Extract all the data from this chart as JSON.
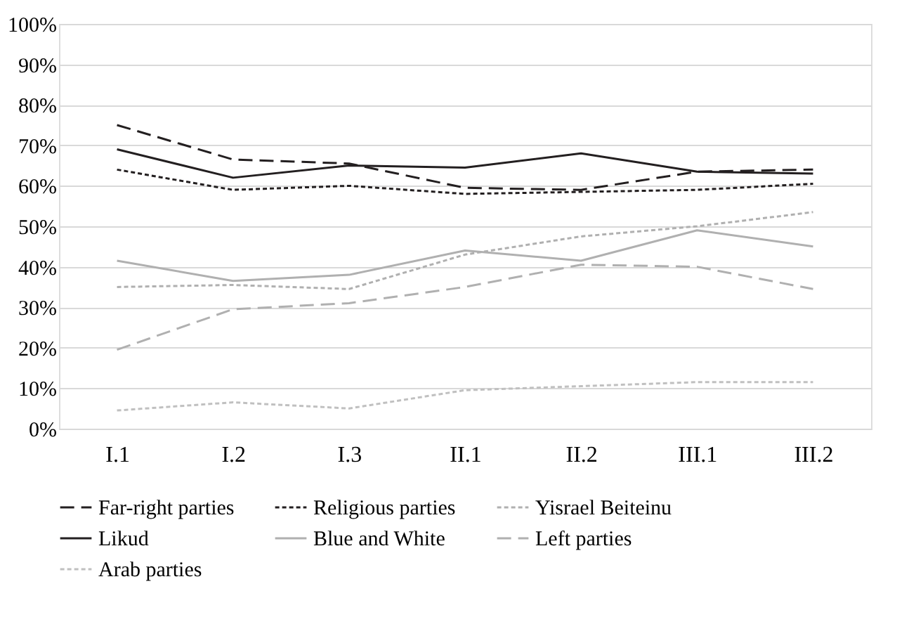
{
  "chart_data": {
    "type": "line",
    "categories": [
      "I.1",
      "I.2",
      "I.3",
      "II.1",
      "II.2",
      "III.1",
      "III.2"
    ],
    "ylim": [
      0,
      100
    ],
    "yticks": [
      {
        "value": 0,
        "label": "0%"
      },
      {
        "value": 10,
        "label": "10%"
      },
      {
        "value": 20,
        "label": "20%"
      },
      {
        "value": 30,
        "label": "30%"
      },
      {
        "value": 40,
        "label": "40%"
      },
      {
        "value": 50,
        "label": "50%"
      },
      {
        "value": 60,
        "label": "60%"
      },
      {
        "value": 70,
        "label": "70%"
      },
      {
        "value": 80,
        "label": "80%"
      },
      {
        "value": 90,
        "label": "90%"
      },
      {
        "value": 100,
        "label": "100%"
      }
    ],
    "grid": "y",
    "legend": "bottom",
    "marker": "none",
    "series": [
      {
        "name": "Far-right parties",
        "color": "#231f20",
        "line_style": "dashed",
        "values": [
          75,
          66.5,
          65.5,
          59.5,
          59,
          63.5,
          64
        ]
      },
      {
        "name": "Religious parties",
        "color": "#231f20",
        "line_style": "dotted",
        "values": [
          64,
          59,
          60,
          58,
          58.5,
          59,
          60.5
        ]
      },
      {
        "name": "Yisrael Beiteinu",
        "color": "#b0b0b0",
        "line_style": "dotted",
        "values": [
          35,
          35.5,
          34.5,
          43,
          47.5,
          50,
          53.5
        ]
      },
      {
        "name": "Likud",
        "color": "#231f20",
        "line_style": "solid",
        "values": [
          69,
          62,
          65,
          64.5,
          68,
          63.5,
          63
        ]
      },
      {
        "name": "Blue and White",
        "color": "#b0b0b0",
        "line_style": "solid",
        "values": [
          41.5,
          36.5,
          38,
          44,
          41.5,
          49,
          45
        ]
      },
      {
        "name": "Left parties",
        "color": "#b0b0b0",
        "line_style": "dashed",
        "values": [
          19.5,
          29.5,
          31,
          35,
          40.5,
          40,
          34.5
        ]
      },
      {
        "name": "Arab parties",
        "color": "#c0c0c0",
        "line_style": "dotted",
        "values": [
          4.5,
          6.5,
          5,
          9.5,
          10.5,
          11.5,
          11.5
        ]
      }
    ]
  }
}
